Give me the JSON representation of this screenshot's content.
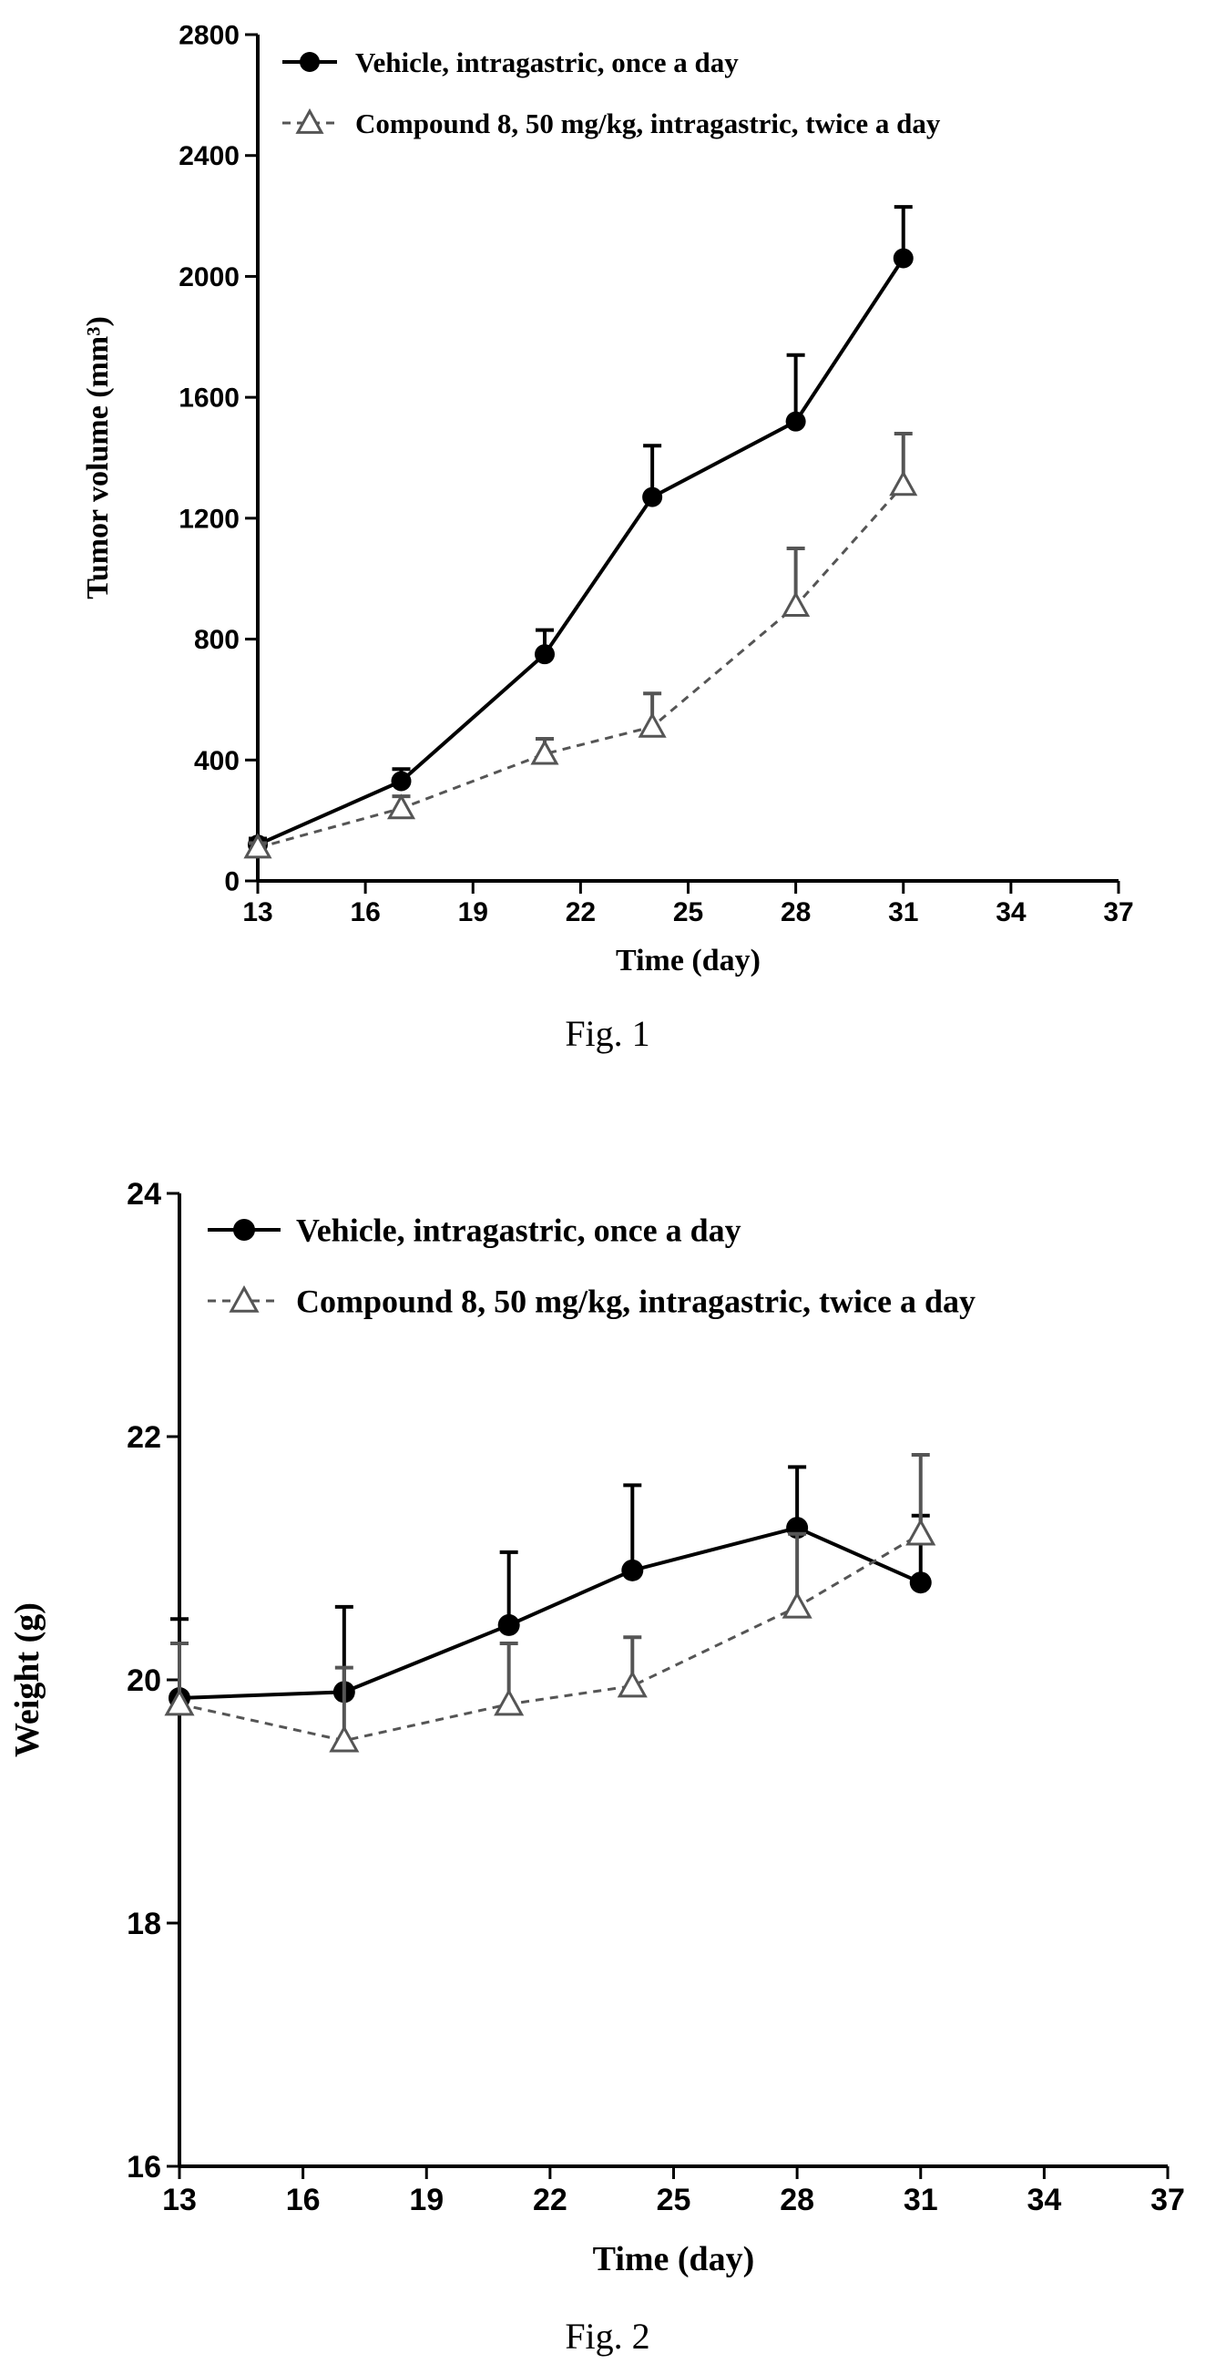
{
  "figures": [
    {
      "caption": "Fig. 1",
      "chart_data": {
        "type": "line",
        "title": "",
        "xlabel": "Time (day)",
        "ylabel": "Tumor volume (mm³)",
        "xlim": [
          13,
          37
        ],
        "ylim": [
          0,
          2800
        ],
        "xticks": [
          13,
          16,
          19,
          22,
          25,
          28,
          31,
          34,
          37
        ],
        "yticks": [
          0,
          400,
          800,
          1200,
          1600,
          2000,
          2400,
          2800
        ],
        "legend_position": "top-left",
        "series": [
          {
            "name": "Vehicle, intragastric, once a day",
            "marker": "circle",
            "line": "solid",
            "color": "#000000",
            "x": [
              13,
              17,
              21,
              24,
              28,
              31
            ],
            "y": [
              120,
              330,
              750,
              1270,
              1520,
              2060
            ],
            "error": [
              20,
              40,
              80,
              170,
              220,
              170
            ]
          },
          {
            "name": "Compound 8, 50 mg/kg, intragastric, twice a day",
            "marker": "triangle",
            "line": "dashed",
            "color": "#555555",
            "x": [
              13,
              17,
              21,
              24,
              28,
              31
            ],
            "y": [
              110,
              240,
              420,
              510,
              910,
              1310
            ],
            "error": [
              15,
              40,
              50,
              110,
              190,
              170
            ]
          }
        ]
      }
    },
    {
      "caption": "Fig. 2",
      "chart_data": {
        "type": "line",
        "title": "",
        "xlabel": "Time (day)",
        "ylabel": "Weight (g)",
        "xlim": [
          13,
          37
        ],
        "ylim": [
          16,
          24
        ],
        "xticks": [
          13,
          16,
          19,
          22,
          25,
          28,
          31,
          34,
          37
        ],
        "yticks": [
          16,
          18,
          20,
          22,
          24
        ],
        "legend_position": "top-left",
        "series": [
          {
            "name": "Vehicle, intragastric, once a day",
            "marker": "circle",
            "line": "solid",
            "color": "#000000",
            "x": [
              13,
              17,
              21,
              24,
              28,
              31
            ],
            "y": [
              19.85,
              19.9,
              20.45,
              20.9,
              21.25,
              20.8
            ],
            "error": [
              0.65,
              0.7,
              0.6,
              0.7,
              0.5,
              0.55
            ]
          },
          {
            "name": "Compound 8, 50 mg/kg, intragastric, twice a day",
            "marker": "triangle",
            "line": "dashed",
            "color": "#555555",
            "x": [
              13,
              17,
              21,
              24,
              28,
              31
            ],
            "y": [
              19.8,
              19.5,
              19.8,
              19.95,
              20.6,
              21.2
            ],
            "error": [
              0.5,
              0.6,
              0.5,
              0.4,
              0.6,
              0.65
            ]
          }
        ]
      }
    }
  ]
}
